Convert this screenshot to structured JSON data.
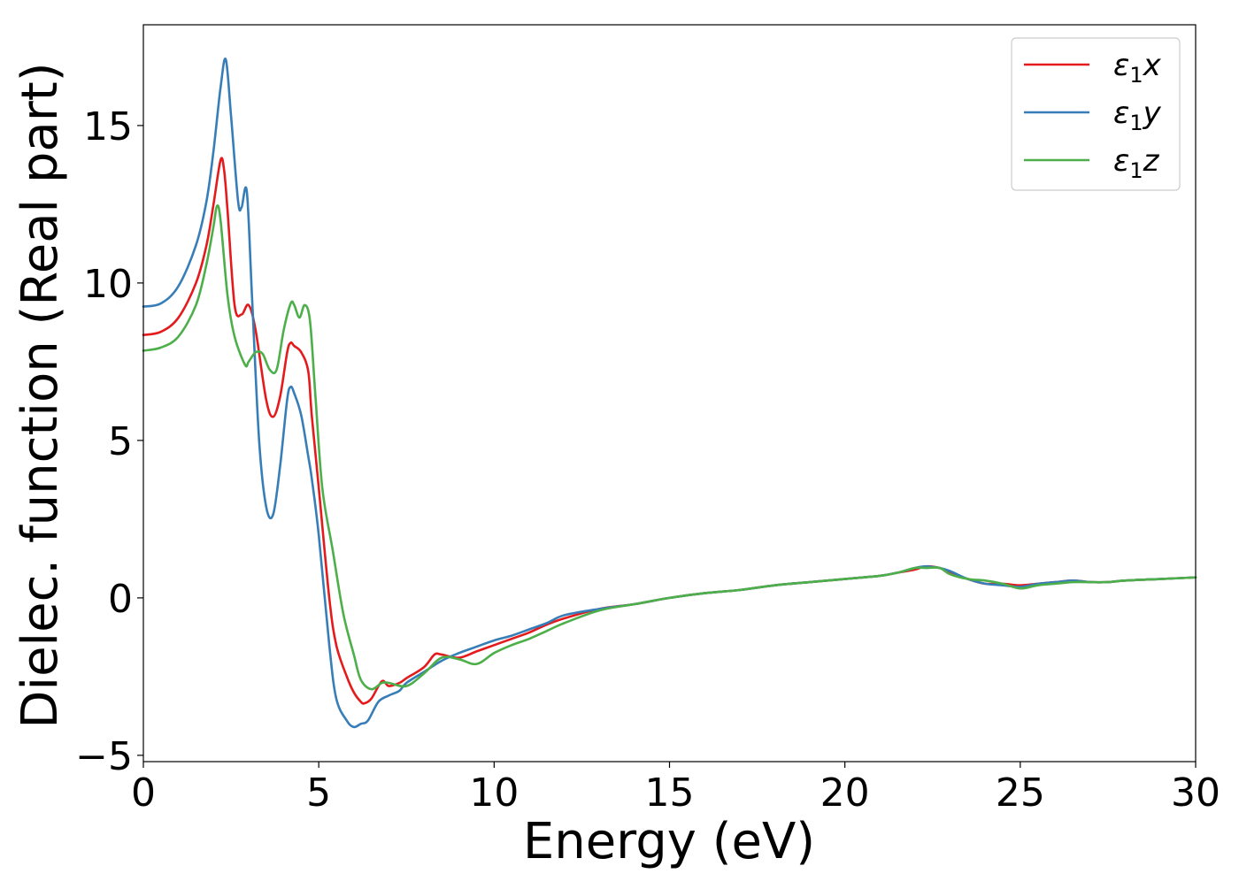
{
  "chart_data": {
    "type": "line",
    "title": "",
    "xlabel": "Energy (eV)",
    "ylabel": "Dielec. function (Real part)",
    "xlim": [
      0,
      30
    ],
    "ylim": [
      -5.2,
      18.2
    ],
    "xticks": [
      0,
      5,
      10,
      15,
      20,
      25,
      30
    ],
    "xtick_labels": [
      "0",
      "5",
      "10",
      "15",
      "20",
      "25",
      "30"
    ],
    "yticks": [
      -5,
      0,
      5,
      10,
      15
    ],
    "ytick_labels": [
      "−5",
      "0",
      "5",
      "10",
      "15"
    ],
    "grid": false,
    "legend_position": "top-right",
    "series": [
      {
        "name": "ε₁x",
        "legend_main": "ε",
        "legend_sub": "1",
        "legend_tail": "x",
        "color": "#e41a1c",
        "x": [
          0,
          0.5,
          1.0,
          1.5,
          1.8,
          2.0,
          2.2,
          2.3,
          2.4,
          2.6,
          2.8,
          3.0,
          3.2,
          3.5,
          3.7,
          3.9,
          4.1,
          4.2,
          4.3,
          4.5,
          4.7,
          4.8,
          5.0,
          5.3,
          5.5,
          5.8,
          6.0,
          6.2,
          6.3,
          6.5,
          6.8,
          7.0,
          7.3,
          7.5,
          8.0,
          8.3,
          8.5,
          9.0,
          9.5,
          10.0,
          10.5,
          11.0,
          11.5,
          12.0,
          13.0,
          14.0,
          15.0,
          16.0,
          17.0,
          18.0,
          19.0,
          20.0,
          21.0,
          21.5,
          22.0,
          22.3,
          22.7,
          23.0,
          23.5,
          24.0,
          24.5,
          25.0,
          25.5,
          26.0,
          26.5,
          27.0,
          27.5,
          28.0,
          29.0,
          30.0
        ],
        "y": [
          8.35,
          8.45,
          8.9,
          10.0,
          11.2,
          12.5,
          13.9,
          13.6,
          12.3,
          9.3,
          9.0,
          9.3,
          8.5,
          6.3,
          5.75,
          6.4,
          7.8,
          8.1,
          8.0,
          7.8,
          7.2,
          5.8,
          3.5,
          0.0,
          -1.5,
          -2.5,
          -3.0,
          -3.3,
          -3.35,
          -3.2,
          -2.65,
          -2.8,
          -2.7,
          -2.55,
          -2.2,
          -1.8,
          -1.8,
          -1.9,
          -1.7,
          -1.5,
          -1.3,
          -1.1,
          -0.85,
          -0.65,
          -0.35,
          -0.2,
          0.0,
          0.15,
          0.25,
          0.4,
          0.5,
          0.6,
          0.7,
          0.8,
          0.9,
          1.0,
          0.95,
          0.8,
          0.6,
          0.45,
          0.45,
          0.4,
          0.45,
          0.5,
          0.55,
          0.5,
          0.5,
          0.55,
          0.6,
          0.65
        ]
      },
      {
        "name": "ε₁y",
        "legend_main": "ε",
        "legend_sub": "1",
        "legend_tail": "y",
        "color": "#377eb8",
        "x": [
          0,
          0.5,
          1.0,
          1.5,
          1.8,
          2.0,
          2.2,
          2.35,
          2.5,
          2.7,
          2.8,
          2.95,
          3.1,
          3.3,
          3.5,
          3.7,
          3.9,
          4.1,
          4.2,
          4.3,
          4.5,
          4.7,
          4.8,
          5.0,
          5.3,
          5.5,
          5.8,
          6.0,
          6.2,
          6.4,
          6.7,
          7.0,
          7.3,
          7.5,
          8.0,
          8.5,
          9.0,
          9.5,
          10.0,
          10.5,
          11.0,
          11.5,
          12.0,
          13.0,
          14.0,
          15.0,
          16.0,
          17.0,
          18.0,
          19.0,
          20.0,
          21.0,
          21.5,
          22.0,
          22.3,
          22.7,
          23.0,
          23.5,
          24.0,
          24.5,
          25.0,
          25.5,
          26.0,
          26.5,
          27.0,
          27.5,
          28.0,
          29.0,
          30.0
        ],
        "y": [
          9.25,
          9.35,
          9.9,
          11.2,
          12.6,
          14.2,
          16.2,
          17.1,
          15.3,
          12.6,
          12.4,
          12.9,
          9.5,
          5.0,
          2.9,
          2.65,
          4.2,
          6.3,
          6.7,
          6.5,
          5.8,
          4.5,
          3.8,
          2.0,
          -1.5,
          -3.2,
          -3.9,
          -4.1,
          -4.0,
          -3.9,
          -3.3,
          -3.1,
          -2.95,
          -2.7,
          -2.35,
          -2.0,
          -1.75,
          -1.55,
          -1.35,
          -1.2,
          -1.0,
          -0.8,
          -0.55,
          -0.35,
          -0.2,
          0.0,
          0.15,
          0.25,
          0.4,
          0.5,
          0.6,
          0.7,
          0.8,
          0.95,
          1.0,
          0.95,
          0.85,
          0.6,
          0.45,
          0.4,
          0.35,
          0.45,
          0.5,
          0.55,
          0.5,
          0.5,
          0.55,
          0.6,
          0.65
        ]
      },
      {
        "name": "ε₁z",
        "legend_main": "ε",
        "legend_sub": "1",
        "legend_tail": "z",
        "color": "#4daf4a",
        "x": [
          0,
          0.5,
          1.0,
          1.5,
          1.8,
          2.0,
          2.1,
          2.2,
          2.4,
          2.6,
          2.9,
          3.0,
          3.2,
          3.4,
          3.6,
          3.8,
          4.0,
          4.2,
          4.3,
          4.45,
          4.6,
          4.75,
          4.9,
          5.1,
          5.4,
          5.7,
          6.0,
          6.2,
          6.5,
          6.8,
          7.0,
          7.5,
          8.0,
          8.5,
          9.0,
          9.5,
          10.0,
          10.5,
          11.0,
          11.5,
          12.0,
          13.0,
          14.0,
          15.0,
          16.0,
          17.0,
          18.0,
          19.0,
          20.0,
          21.0,
          21.5,
          22.0,
          22.3,
          22.7,
          23.0,
          23.5,
          24.0,
          24.5,
          25.0,
          25.5,
          26.0,
          26.5,
          27.0,
          27.5,
          28.0,
          29.0,
          30.0
        ],
        "y": [
          7.85,
          7.95,
          8.3,
          9.3,
          10.6,
          11.8,
          12.45,
          12.0,
          9.6,
          8.3,
          7.4,
          7.5,
          7.8,
          7.75,
          7.25,
          7.25,
          8.5,
          9.35,
          9.3,
          8.9,
          9.3,
          8.8,
          6.5,
          3.5,
          1.5,
          -0.5,
          -1.8,
          -2.6,
          -2.9,
          -2.7,
          -2.7,
          -2.8,
          -2.4,
          -1.9,
          -1.95,
          -2.1,
          -1.75,
          -1.5,
          -1.3,
          -1.05,
          -0.8,
          -0.4,
          -0.2,
          0.0,
          0.15,
          0.25,
          0.4,
          0.5,
          0.6,
          0.7,
          0.8,
          0.95,
          0.95,
          0.95,
          0.75,
          0.6,
          0.55,
          0.45,
          0.3,
          0.4,
          0.45,
          0.5,
          0.5,
          0.5,
          0.55,
          0.6,
          0.65
        ]
      }
    ]
  }
}
